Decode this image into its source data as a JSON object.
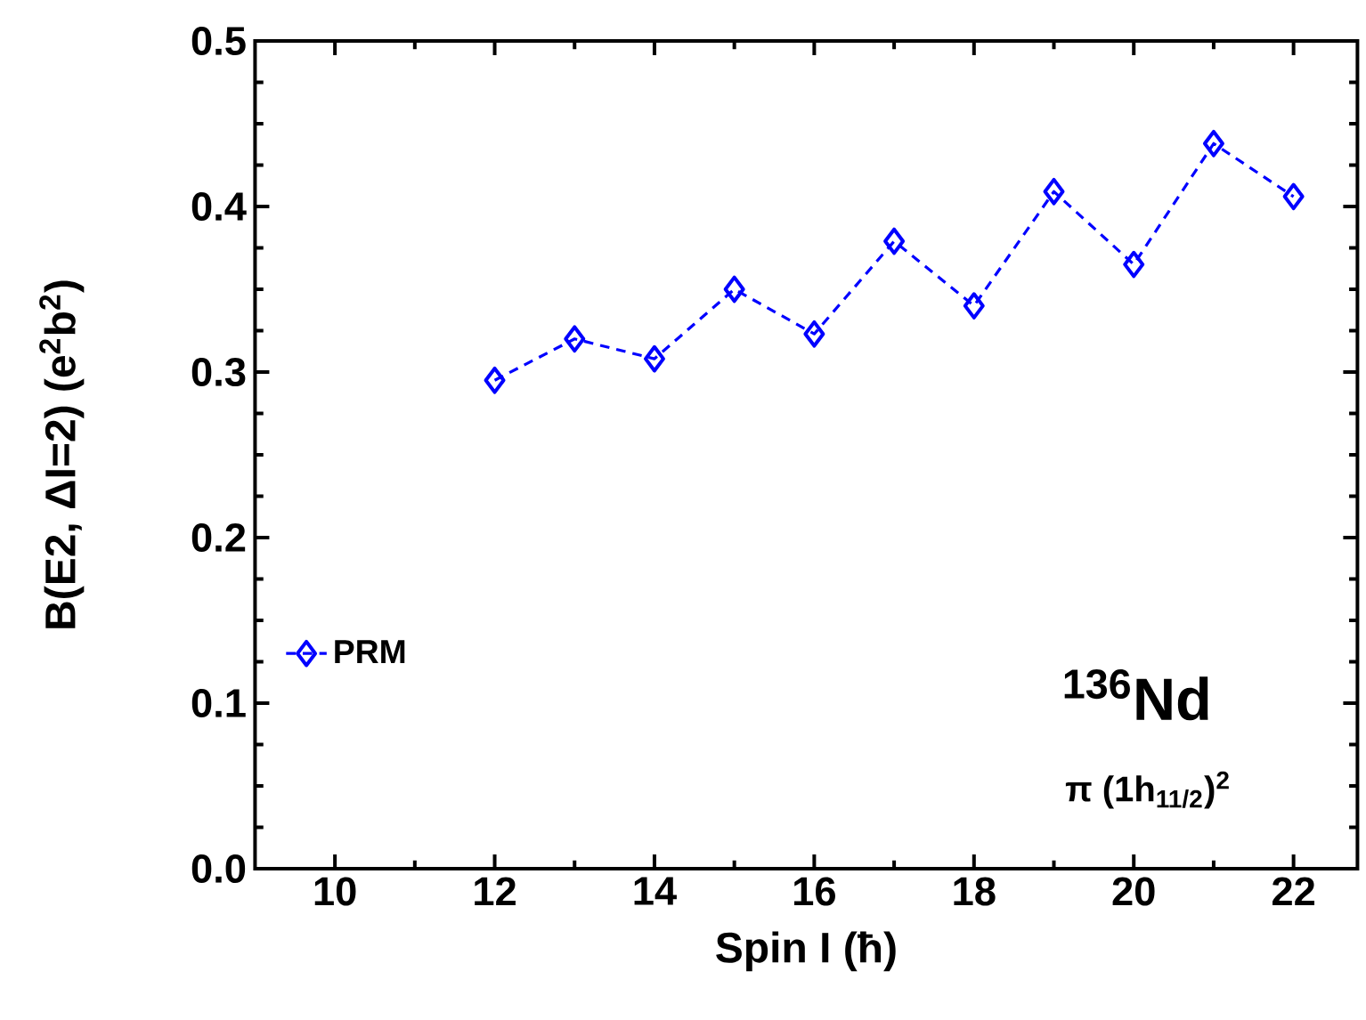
{
  "chart_data": {
    "type": "line",
    "xlabel": "Spin I (ħ)",
    "ylabel": "B(E2, ΔI=2) (e$^{2}$b$^{2}$)",
    "x": [
      12,
      13,
      14,
      15,
      16,
      17,
      18,
      19,
      20,
      21,
      22
    ],
    "series": [
      {
        "name": "PRM",
        "color": "#0000ff",
        "marker": "diamond",
        "line_style": "dashed",
        "values": [
          0.295,
          0.32,
          0.308,
          0.35,
          0.323,
          0.379,
          0.34,
          0.409,
          0.365,
          0.438,
          0.406
        ]
      }
    ],
    "xlim": [
      9,
      22.8
    ],
    "ylim": [
      0,
      0.5
    ],
    "xticks": [
      10,
      12,
      14,
      16,
      18,
      20,
      22
    ],
    "yticks": [
      {
        "value": 0,
        "label": "0.0"
      },
      0.1,
      0.2,
      0.3,
      0.4,
      0.5
    ],
    "legend": "bottom left",
    "grid": false,
    "annotations": [
      "$^{136}$Nd",
      "π (1h$_{11/2}$)$^{2}$"
    ]
  }
}
